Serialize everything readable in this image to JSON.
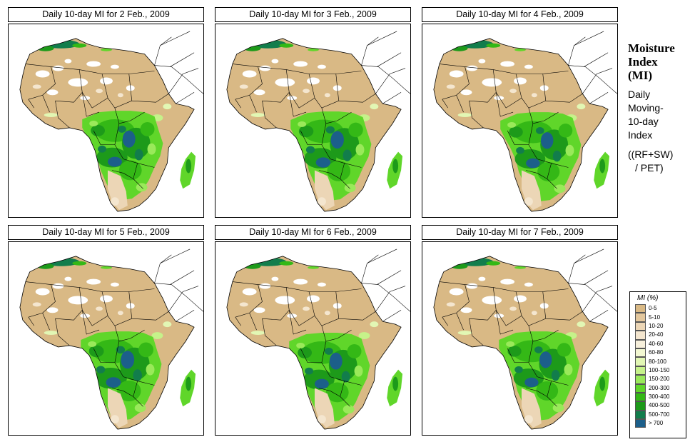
{
  "panels": [
    {
      "title": "Daily 10-day MI for  2 Feb., 2009"
    },
    {
      "title": "Daily 10-day MI for  3 Feb., 2009"
    },
    {
      "title": "Daily 10-day MI for  4 Feb., 2009"
    },
    {
      "title": "Daily 10-day MI for  5 Feb., 2009"
    },
    {
      "title": "Daily 10-day MI for  6 Feb., 2009"
    },
    {
      "title": "Daily 10-day MI for  7 Feb., 2009"
    }
  ],
  "side": {
    "title_lines": [
      "Moisture",
      "Index",
      "(MI)"
    ],
    "desc_lines": [
      "Daily",
      "Moving-",
      "10-day",
      "Index"
    ],
    "formula_lines": [
      "((RF+SW)",
      "/ PET)"
    ]
  },
  "legend": {
    "title": "MI (%)",
    "items": [
      {
        "label": "0-5",
        "color": "#d9b985"
      },
      {
        "label": "5-10",
        "color": "#e3c79d"
      },
      {
        "label": "10-20",
        "color": "#ecd6b6"
      },
      {
        "label": "20-40",
        "color": "#f4e6cf"
      },
      {
        "label": "40-60",
        "color": "#f7f0dc"
      },
      {
        "label": "60-80",
        "color": "#f3f8d2"
      },
      {
        "label": "80-100",
        "color": "#e2f7b4"
      },
      {
        "label": "100-150",
        "color": "#c6f28a"
      },
      {
        "label": "150-200",
        "color": "#9ae95a"
      },
      {
        "label": "200-300",
        "color": "#60d62a"
      },
      {
        "label": "300-400",
        "color": "#34b816"
      },
      {
        "label": "400-500",
        "color": "#1d9a1a"
      },
      {
        "label": "500-700",
        "color": "#127d4c"
      },
      {
        "label": "> 700",
        "color": "#1c5f8a"
      }
    ]
  }
}
